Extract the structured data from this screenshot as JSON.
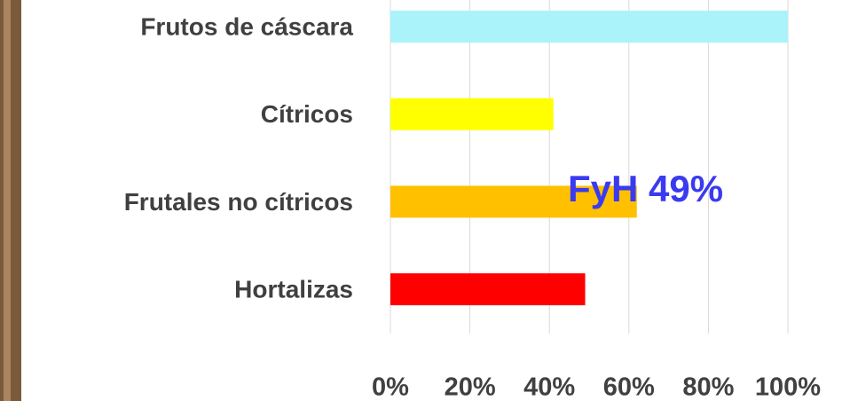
{
  "chart_data": {
    "type": "bar",
    "orientation": "horizontal",
    "categories": [
      "Frutos de cáscara",
      "Cítricos",
      "Frutales no cítricos",
      "Hortalizas"
    ],
    "values": [
      100,
      41,
      62,
      49
    ],
    "colors": [
      "#aaf3fb",
      "#ffff00",
      "#ffc000",
      "#ff0000"
    ],
    "xlim": [
      0,
      100
    ],
    "xticks": [
      {
        "value": 0,
        "label": "0%"
      },
      {
        "value": 20,
        "label": "20%"
      },
      {
        "value": 40,
        "label": "40%"
      },
      {
        "value": 60,
        "label": "60%"
      },
      {
        "value": 80,
        "label": "80%"
      },
      {
        "value": 100,
        "label": "100%"
      }
    ],
    "grid": true,
    "annotation": "FyH 49%"
  }
}
